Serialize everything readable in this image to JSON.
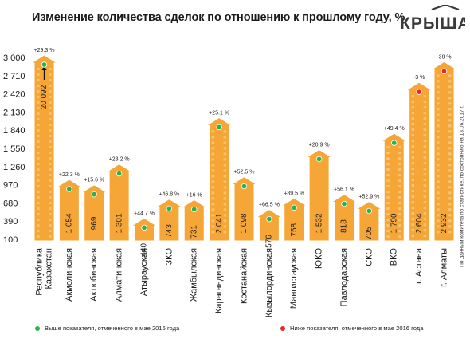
{
  "title": "Изменение количества сделок по отношению к прошлому году, %",
  "brand": "КРЫША",
  "source_note": "По данным комитета по статистике, по состоянию на 13.06.2017 г.",
  "legend": {
    "above_label": "Выше показателя, отмеченного в мае 2016 года",
    "below_label": "Ниже показателя, отмеченного в мае 2016 года"
  },
  "colors": {
    "bar": "#f5a637",
    "bar_light": "#f9c472",
    "bar_outline": "#ffffff",
    "marker_above": "#2bb24c",
    "marker_below": "#e8292a",
    "text": "#1a1a1a"
  },
  "chart_data": {
    "type": "bar",
    "title": "Изменение количества сделок по отношению к прошлому году, %",
    "y_ticks": [
      "3 000",
      "2 710",
      "2 420",
      "2 130",
      "1 840",
      "1 550",
      "1 260",
      "970",
      "680",
      "390",
      "100"
    ],
    "ylim": [
      100,
      3000
    ],
    "categories": [
      "Республика Казахстан",
      "Акмолинская",
      "Актюбинская",
      "Алматинская",
      "Атырауская",
      "ЗКО",
      "Жамбылская",
      "Карагандинская",
      "Костанайская",
      "Кызылординская",
      "Мангистауская",
      "ЮКО",
      "Павлодарская",
      "СКО",
      "ВКО",
      "г. Астана",
      "г. Алматы"
    ],
    "values": [
      20092,
      1054,
      969,
      1301,
      440,
      743,
      731,
      2041,
      1098,
      576,
      758,
      1532,
      818,
      705,
      1790,
      2604,
      2932
    ],
    "value_labels": [
      "20 092",
      "1 054",
      "969",
      "1 301",
      "440",
      "743",
      "731",
      "2 041",
      "1 098",
      "576",
      "758",
      "1 532",
      "818",
      "705",
      "1 790",
      "2 604",
      "2 932"
    ],
    "change_labels": [
      "+29.3 %",
      "+22.3 %",
      "+15.6 %",
      "+23.2 %",
      "+44.7 %",
      "+46.8 %",
      "+16 %",
      "+25.1 %",
      "+52.5 %",
      "+66.5 %",
      "+89.5 %",
      "+20.9 %",
      "+56.1 %",
      "+52.9 %",
      "+49.4 %",
      "-3 %",
      "-39 %"
    ],
    "markers": [
      "above",
      "above",
      "above",
      "above",
      "above",
      "above",
      "above",
      "above",
      "above",
      "above",
      "above",
      "above",
      "above",
      "above",
      "above",
      "below",
      "below"
    ],
    "axis_break_first_bar": true,
    "grid": false,
    "legend_position": "bottom"
  }
}
